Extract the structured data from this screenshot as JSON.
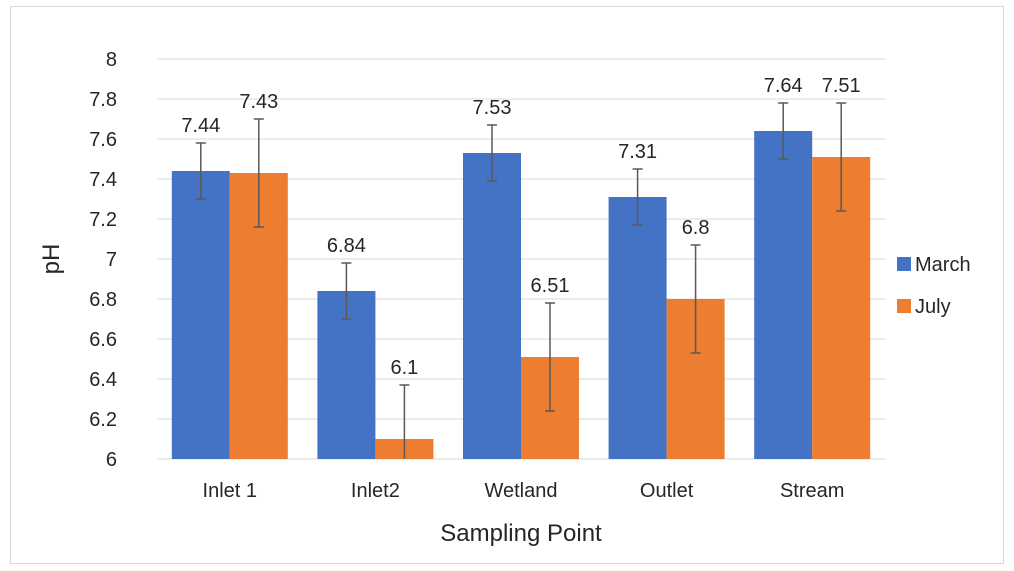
{
  "chart_data": {
    "type": "bar",
    "title": "",
    "xlabel": "Sampling Point",
    "ylabel": "pH",
    "categories": [
      "Inlet 1",
      "Inlet2",
      "Wetland",
      "Outlet",
      "Stream"
    ],
    "series": [
      {
        "name": "March",
        "color": "#4472C4",
        "values": [
          7.44,
          6.84,
          7.53,
          7.31,
          7.64
        ],
        "value_labels": [
          "7.44",
          "6.84",
          "7.53",
          "7.31",
          "7.64"
        ],
        "error": [
          0.14,
          0.14,
          0.14,
          0.14,
          0.14
        ]
      },
      {
        "name": "July",
        "color": "#ED7D31",
        "values": [
          7.43,
          6.1,
          6.51,
          6.8,
          7.51
        ],
        "value_labels": [
          "7.43",
          "6.1",
          "6.51",
          "6.8",
          "7.51"
        ],
        "error": [
          0.27,
          0.27,
          0.27,
          0.27,
          0.27
        ]
      }
    ],
    "ylim": [
      6,
      8
    ],
    "yticks": [
      "6",
      "6.2",
      "6.4",
      "6.6",
      "6.8",
      "7",
      "7.2",
      "7.4",
      "7.6",
      "7.8",
      "8"
    ],
    "grid": true,
    "legend_position": "right"
  }
}
